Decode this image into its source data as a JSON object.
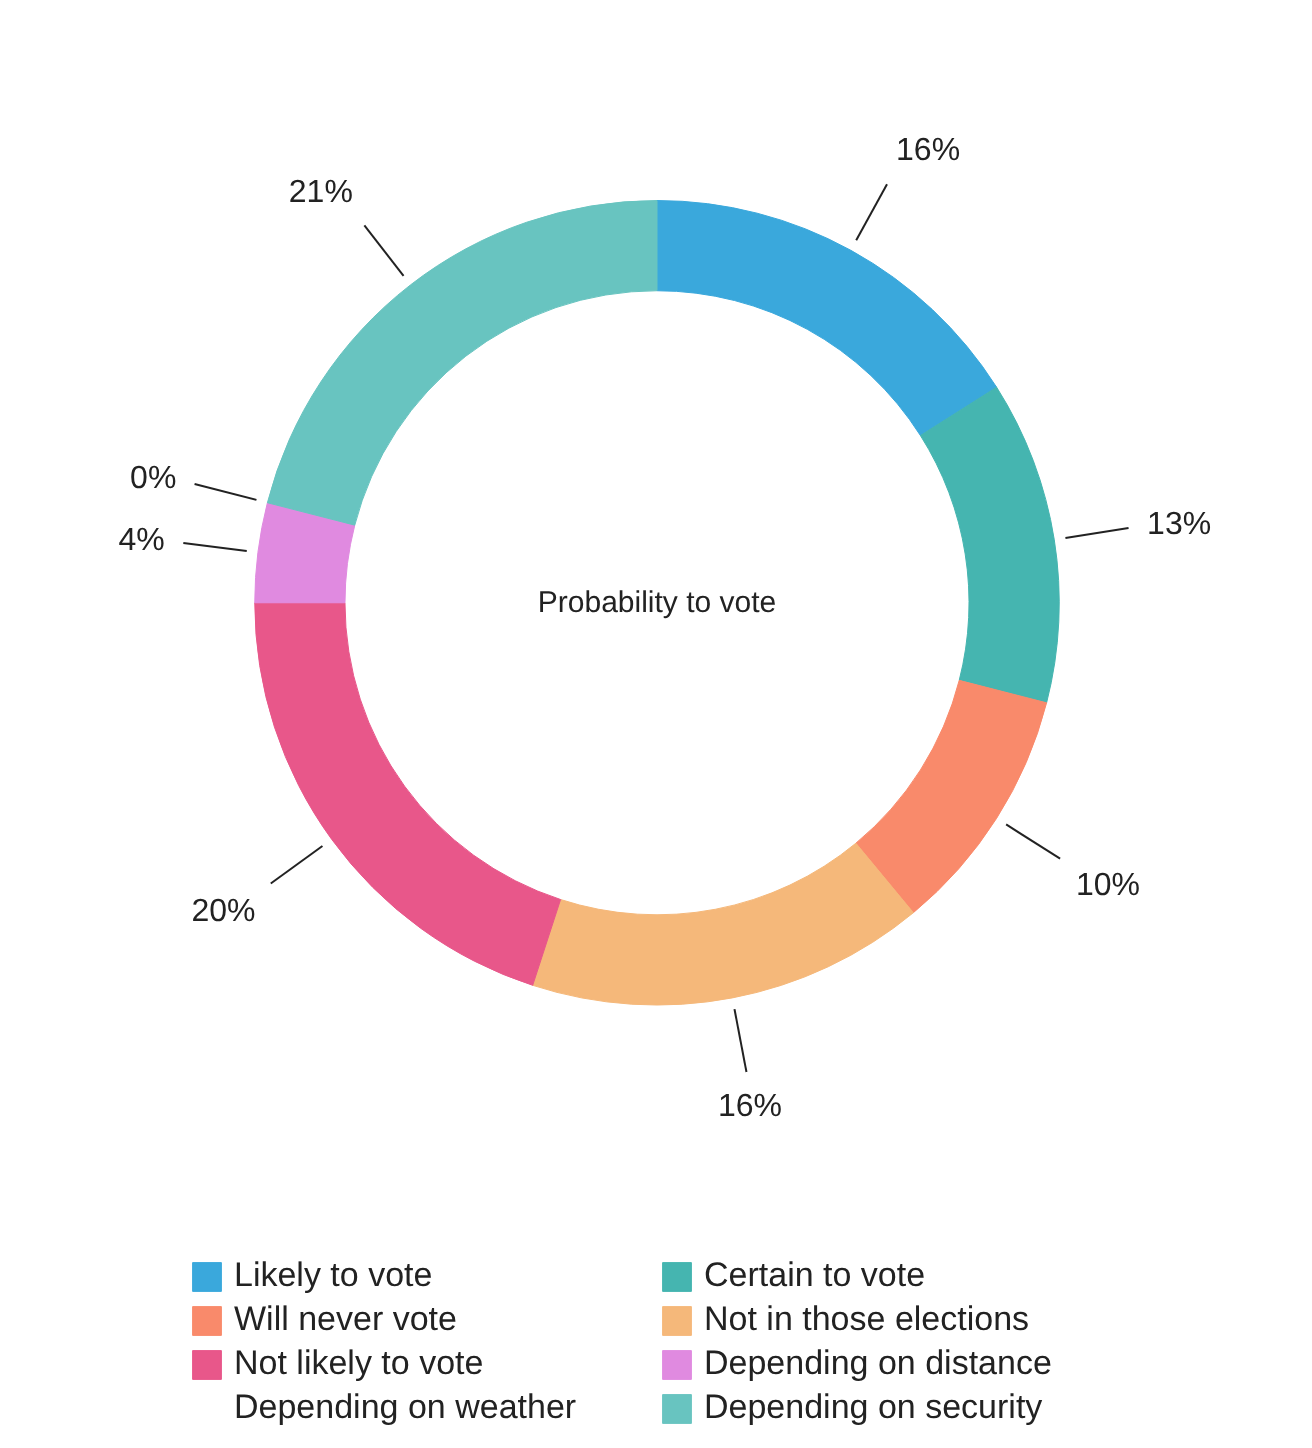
{
  "chart_data": {
    "type": "donut",
    "title": "Probability to vote",
    "categories": [
      "Likely to vote",
      "Certain to vote",
      "Will never vote",
      "Not in those elections",
      "Not likely to vote",
      "Depending on distance",
      "Depending on weather",
      "Depending on security"
    ],
    "values": [
      16,
      13,
      10,
      16,
      20,
      4,
      0,
      21
    ],
    "colors": [
      "#3aa8dc",
      "#45b5b0",
      "#f98a6b",
      "#f5b87a",
      "#e8578a",
      "#e08ae0",
      "#40a8e0",
      "#68c4c0"
    ],
    "value_labels": [
      "16%",
      "13%",
      "10%",
      "16%",
      "20%",
      "4%",
      "0%",
      "21%"
    ],
    "legend": "bottom"
  }
}
